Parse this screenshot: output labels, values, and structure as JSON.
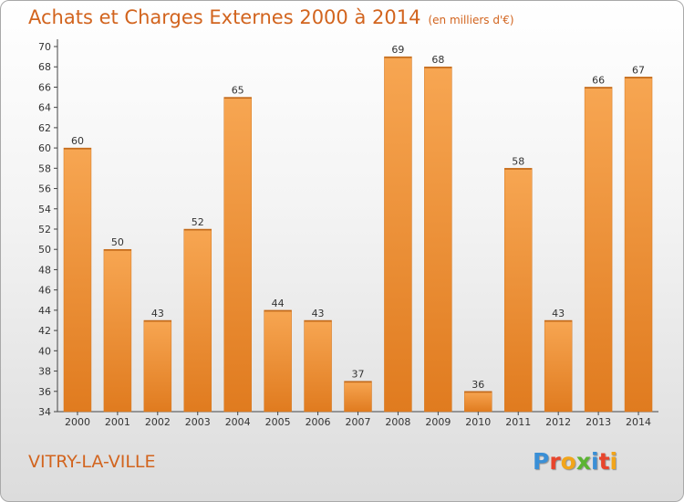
{
  "chart_data": {
    "type": "bar",
    "title": "Achats et Charges Externes 2000 à 2014",
    "subtitle": "(en milliers d'€)",
    "categories": [
      "2000",
      "2001",
      "2002",
      "2003",
      "2004",
      "2005",
      "2006",
      "2007",
      "2008",
      "2009",
      "2010",
      "2011",
      "2012",
      "2013",
      "2014"
    ],
    "values": [
      60,
      50,
      43,
      52,
      65,
      44,
      43,
      37,
      69,
      68,
      36,
      58,
      43,
      66,
      67
    ],
    "ylim": [
      34,
      70
    ],
    "yticks": [
      34,
      36,
      38,
      40,
      42,
      44,
      46,
      48,
      50,
      52,
      54,
      56,
      58,
      60,
      62,
      64,
      66,
      68,
      70
    ],
    "grid": false,
    "bar_color_light": "#f7a652",
    "bar_color_dark": "#e07b1f"
  },
  "footer": {
    "place": "VITRY-LA-VILLE",
    "logo_letters": [
      "P",
      "r",
      "o",
      "x",
      "i",
      "t",
      "i"
    ],
    "logo_colors": [
      "#3a8fd6",
      "#e8452c",
      "#f2a51a",
      "#5bb432",
      "#3a8fd6",
      "#e8452c",
      "#f2a51a"
    ]
  },
  "colors": {
    "accent": "#d2641e"
  }
}
